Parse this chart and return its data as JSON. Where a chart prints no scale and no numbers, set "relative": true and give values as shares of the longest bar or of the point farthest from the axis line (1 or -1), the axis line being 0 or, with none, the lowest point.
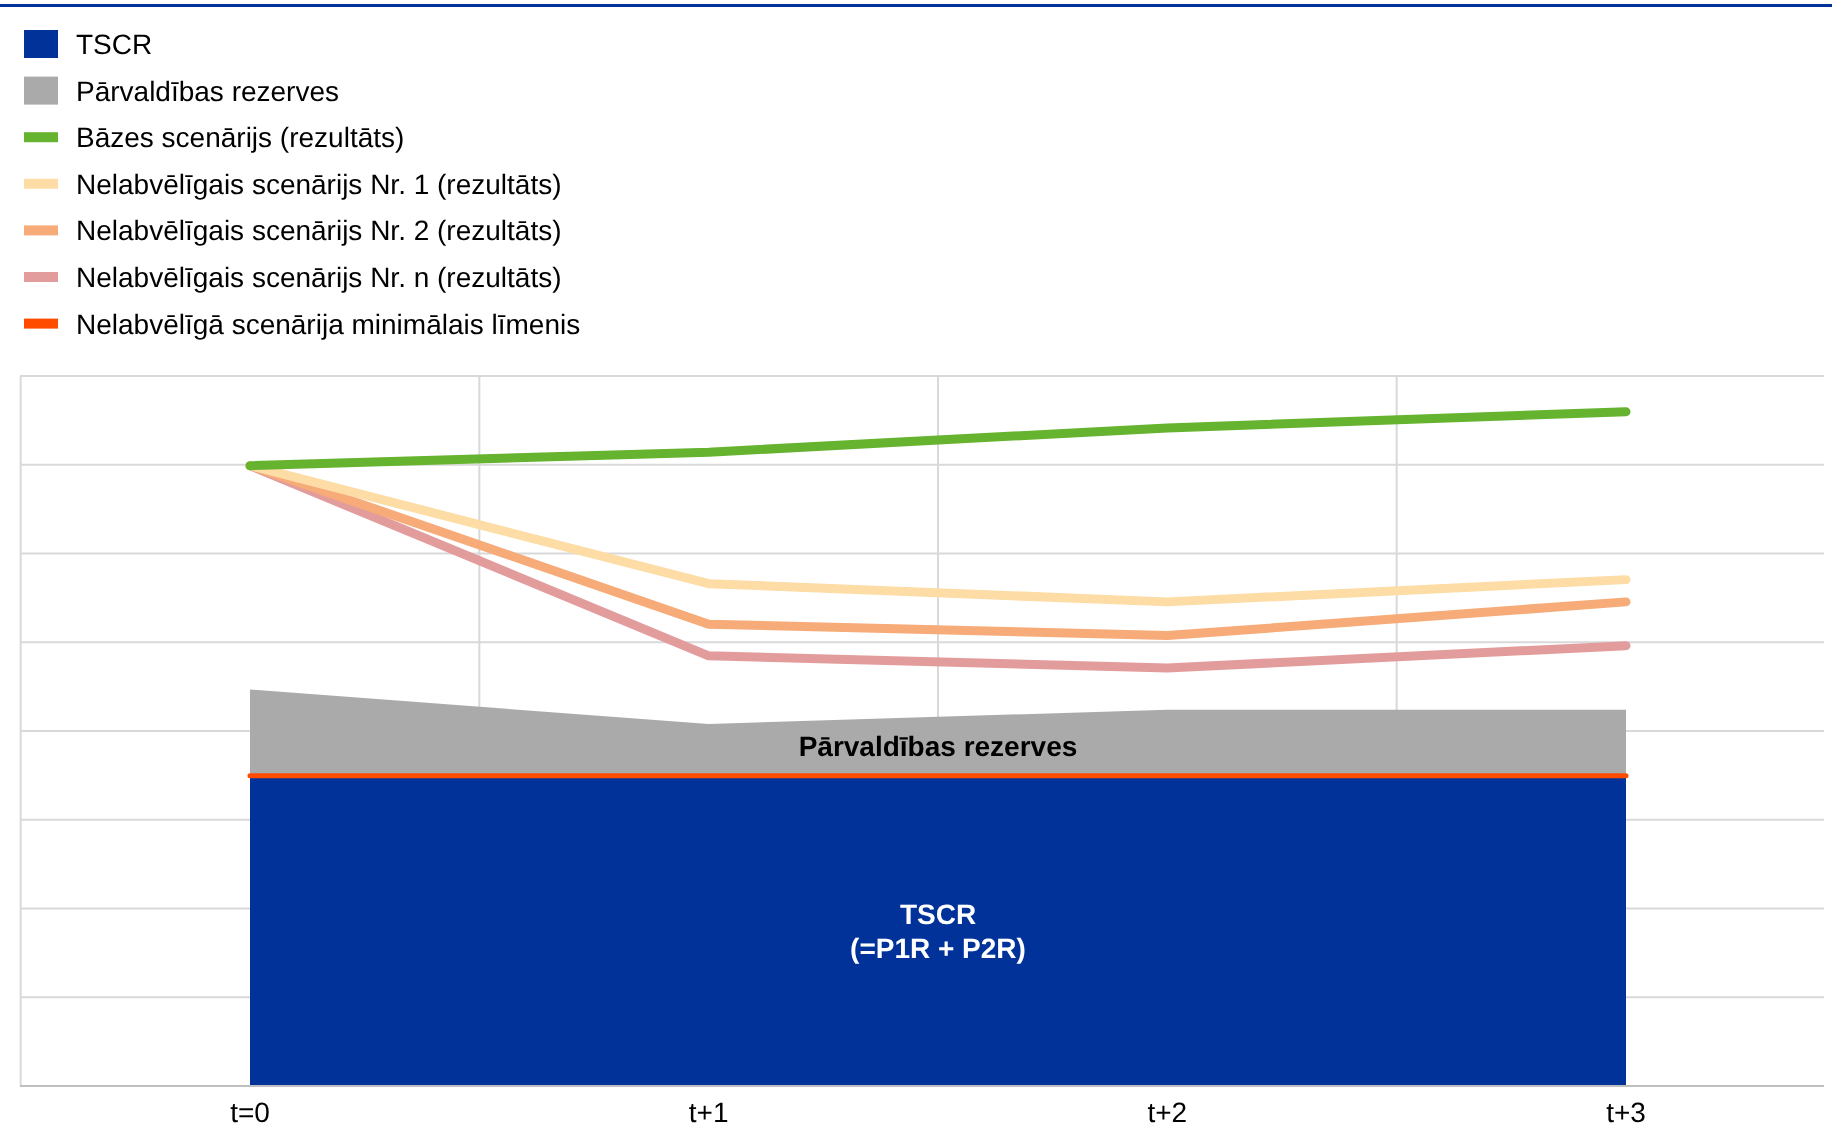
{
  "chart_data": {
    "type": "line",
    "relative": true,
    "grid": true,
    "legend": "top left",
    "categories": [
      "t=0",
      "t+1",
      "t+2",
      "t+3"
    ],
    "series": [
      {
        "name": "TSCR",
        "type": "area",
        "color": "#003299",
        "values": [
          0.46,
          0.46,
          0.46,
          0.46
        ]
      },
      {
        "name": "Pārvaldības rezerves",
        "type": "area",
        "color": "#aaaaaa",
        "values": [
          0.588,
          0.537,
          0.558,
          0.558
        ]
      },
      {
        "name": "Bāzes scenārijs (rezultāts)",
        "color": "#65b32e",
        "values": [
          0.92,
          0.94,
          0.976,
          1
        ]
      },
      {
        "name": "Nelabvēlīgais scenārijs Nr. 1 (rezultāts)",
        "color": "#fddca5",
        "values": [
          0.92,
          0.745,
          0.718,
          0.751
        ]
      },
      {
        "name": "Nelabvēlīgais scenārijs Nr. 2 (rezultāts)",
        "color": "#f6ab78",
        "values": [
          0.92,
          0.685,
          0.668,
          0.718
        ]
      },
      {
        "name": "Nelabvēlīgais scenārijs Nr. n (rezultāts)",
        "color": "#e39c9c",
        "values": [
          0.92,
          0.638,
          0.62,
          0.653
        ]
      },
      {
        "name": "Nelabvēlīgā scenārija minimālais līmenis",
        "color": "#ff4b00",
        "values": [
          0.46,
          0.46,
          0.46,
          0.46
        ]
      }
    ],
    "annotations": [
      "Pārvaldības rezerves",
      "TSCR\n(=P1R + P2R)"
    ]
  }
}
